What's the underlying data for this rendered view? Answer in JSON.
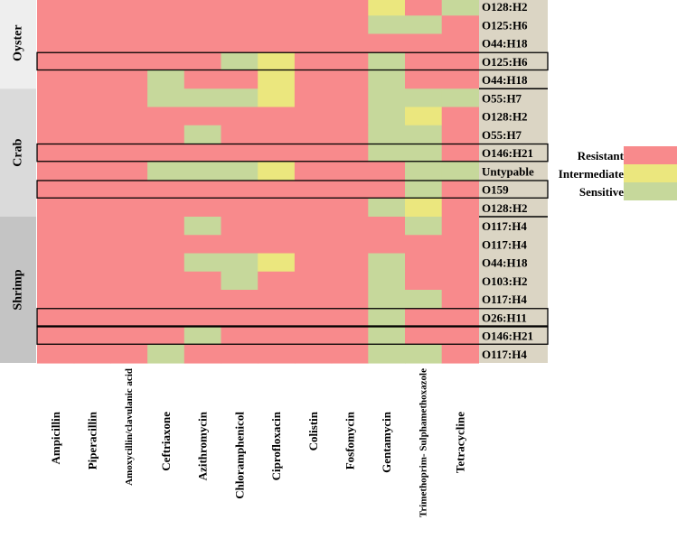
{
  "colors": {
    "R": "#f88a8c",
    "I": "#ebe77e",
    "S": "#c6d89b",
    "label_bg": "#dbd5c4",
    "group_shades": [
      "#eeeeee",
      "#dadada",
      "#c4c4c4"
    ],
    "frame": "#000000"
  },
  "chart_data": {
    "type": "heatmap",
    "title": "",
    "antibiotics": [
      "Ampicillin",
      "Piperacillin",
      "Amoxycillin/clavulanic acid",
      "Ceftriaxone",
      "Azithromycin",
      "Chloramphenicol",
      "Ciprofloxacin",
      "Colistin",
      "Fosfomycin",
      "Gentamycin",
      "Trimethoprim- Sulphamethoxazole",
      "Tetracycline"
    ],
    "value_codes": {
      "R": "Resistant",
      "I": "Intermediate",
      "S": "Sensitive"
    },
    "legend": [
      {
        "code": "R",
        "label": "Resistant"
      },
      {
        "code": "I",
        "label": "Intermediate"
      },
      {
        "code": "S",
        "label": "Sensitive"
      }
    ],
    "groups": [
      {
        "name": "Oyster",
        "first_row": 0,
        "row_count": 5
      },
      {
        "name": "Crab",
        "first_row": 5,
        "row_count": 7
      },
      {
        "name": "Shrimp",
        "first_row": 12,
        "row_count": 8
      }
    ],
    "rows": [
      {
        "serotype": "O128:H2",
        "boxed": false,
        "values": [
          "R",
          "R",
          "R",
          "R",
          "R",
          "R",
          "R",
          "R",
          "R",
          "I",
          "R",
          "S"
        ]
      },
      {
        "serotype": "O125:H6",
        "boxed": false,
        "values": [
          "R",
          "R",
          "R",
          "R",
          "R",
          "R",
          "R",
          "R",
          "R",
          "S",
          "S",
          "R"
        ]
      },
      {
        "serotype": "O44:H18",
        "boxed": false,
        "values": [
          "R",
          "R",
          "R",
          "R",
          "R",
          "R",
          "R",
          "R",
          "R",
          "R",
          "R",
          "R"
        ]
      },
      {
        "serotype": "O125:H6",
        "boxed": true,
        "values": [
          "R",
          "R",
          "R",
          "R",
          "R",
          "S",
          "I",
          "R",
          "R",
          "S",
          "R",
          "R"
        ]
      },
      {
        "serotype": "O44:H18",
        "boxed": false,
        "values": [
          "R",
          "R",
          "R",
          "S",
          "R",
          "R",
          "I",
          "R",
          "R",
          "S",
          "R",
          "R"
        ]
      },
      {
        "serotype": "O55:H7",
        "boxed": false,
        "values": [
          "R",
          "R",
          "R",
          "S",
          "S",
          "S",
          "I",
          "R",
          "R",
          "S",
          "S",
          "S"
        ]
      },
      {
        "serotype": "O128:H2",
        "boxed": false,
        "values": [
          "R",
          "R",
          "R",
          "R",
          "R",
          "R",
          "R",
          "R",
          "R",
          "S",
          "I",
          "R"
        ]
      },
      {
        "serotype": "O55:H7",
        "boxed": false,
        "values": [
          "R",
          "R",
          "R",
          "R",
          "S",
          "R",
          "R",
          "R",
          "R",
          "S",
          "S",
          "R"
        ]
      },
      {
        "serotype": "O146:H21",
        "boxed": true,
        "values": [
          "R",
          "R",
          "R",
          "R",
          "R",
          "R",
          "R",
          "R",
          "R",
          "S",
          "S",
          "R"
        ]
      },
      {
        "serotype": "Untypable",
        "boxed": false,
        "values": [
          "R",
          "R",
          "R",
          "S",
          "S",
          "S",
          "I",
          "R",
          "R",
          "R",
          "S",
          "S"
        ]
      },
      {
        "serotype": "O159",
        "boxed": true,
        "values": [
          "R",
          "R",
          "R",
          "R",
          "R",
          "R",
          "R",
          "R",
          "R",
          "R",
          "S",
          "R"
        ]
      },
      {
        "serotype": "O128:H2",
        "boxed": false,
        "values": [
          "R",
          "R",
          "R",
          "R",
          "R",
          "R",
          "R",
          "R",
          "R",
          "S",
          "I",
          "R"
        ]
      },
      {
        "serotype": "O117:H4",
        "boxed": false,
        "values": [
          "R",
          "R",
          "R",
          "R",
          "S",
          "R",
          "R",
          "R",
          "R",
          "R",
          "S",
          "R"
        ]
      },
      {
        "serotype": "O117:H4",
        "boxed": false,
        "values": [
          "R",
          "R",
          "R",
          "R",
          "R",
          "R",
          "R",
          "R",
          "R",
          "R",
          "R",
          "R"
        ]
      },
      {
        "serotype": "O44:H18",
        "boxed": false,
        "values": [
          "R",
          "R",
          "R",
          "R",
          "S",
          "S",
          "I",
          "R",
          "R",
          "S",
          "R",
          "R"
        ]
      },
      {
        "serotype": "O103:H2",
        "boxed": false,
        "values": [
          "R",
          "R",
          "R",
          "R",
          "R",
          "S",
          "R",
          "R",
          "R",
          "S",
          "R",
          "R"
        ]
      },
      {
        "serotype": "O117:H4",
        "boxed": false,
        "values": [
          "R",
          "R",
          "R",
          "R",
          "R",
          "R",
          "R",
          "R",
          "R",
          "S",
          "S",
          "R"
        ]
      },
      {
        "serotype": "O26:H11",
        "boxed": true,
        "values": [
          "R",
          "R",
          "R",
          "R",
          "R",
          "R",
          "R",
          "R",
          "R",
          "S",
          "R",
          "R"
        ]
      },
      {
        "serotype": "O146:H21",
        "boxed": true,
        "values": [
          "R",
          "R",
          "R",
          "R",
          "S",
          "R",
          "R",
          "R",
          "R",
          "S",
          "R",
          "R"
        ]
      },
      {
        "serotype": "O117:H4",
        "boxed": false,
        "values": [
          "R",
          "R",
          "R",
          "S",
          "R",
          "R",
          "R",
          "R",
          "R",
          "S",
          "S",
          "R"
        ]
      }
    ]
  }
}
